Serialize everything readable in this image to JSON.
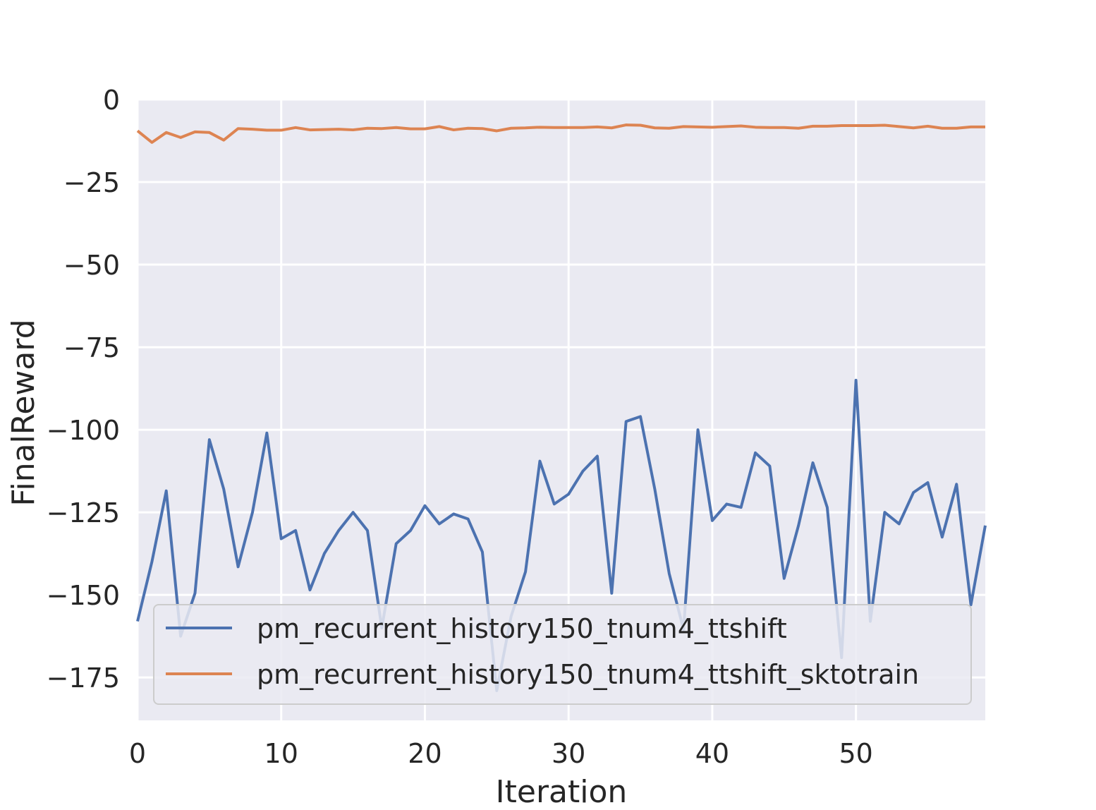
{
  "chart_data": {
    "type": "line",
    "xlabel": "Iteration",
    "ylabel": "FinalReward",
    "xlim": [
      0,
      59
    ],
    "ylim": [
      -188,
      0
    ],
    "xticks": [
      0,
      10,
      20,
      30,
      40,
      50
    ],
    "yticks": [
      0,
      -25,
      -50,
      -75,
      -100,
      -125,
      -150,
      -175
    ],
    "xtick_labels": [
      "0",
      "10",
      "20",
      "30",
      "40",
      "50"
    ],
    "ytick_labels": [
      "0",
      "−25",
      "−50",
      "−75",
      "−100",
      "−125",
      "−150",
      "−175"
    ],
    "grid": true,
    "legend_position": "bottom",
    "x": [
      0,
      1,
      2,
      3,
      4,
      5,
      6,
      7,
      8,
      9,
      10,
      11,
      12,
      13,
      14,
      15,
      16,
      17,
      18,
      19,
      20,
      21,
      22,
      23,
      24,
      25,
      26,
      27,
      28,
      29,
      30,
      31,
      32,
      33,
      34,
      35,
      36,
      37,
      38,
      39,
      40,
      41,
      42,
      43,
      44,
      45,
      46,
      47,
      48,
      49,
      50,
      51,
      52,
      53,
      54,
      55,
      56,
      57,
      58,
      59
    ],
    "series": [
      {
        "name": "pm_recurrent_history150_tnum4_ttshift",
        "color": "#4c72b0",
        "values": [
          -158,
          -140,
          -118.5,
          -162.5,
          -149.5,
          -103,
          -118,
          -141.5,
          -125,
          -101,
          -133,
          -130.5,
          -148.5,
          -137.5,
          -130.5,
          -125,
          -130.5,
          -160,
          -134.5,
          -130.5,
          -123,
          -128.5,
          -125.5,
          -127,
          -137,
          -179,
          -156.5,
          -143,
          -109.5,
          -122.5,
          -119.5,
          -112.5,
          -108,
          -149.5,
          -97.5,
          -96,
          -118,
          -143.5,
          -160.5,
          -100,
          -127.5,
          -122.5,
          -123.5,
          -107,
          -111,
          -145,
          -129,
          -110,
          -123.5,
          -169,
          -85,
          -158,
          -125,
          -128.5,
          -119,
          -116,
          -132.5,
          -116.5,
          -153,
          -129
        ]
      },
      {
        "name": "pm_recurrent_history150_tnum4_ttshift_sktotrain",
        "color": "#dd8452",
        "values": [
          -9.5,
          -13,
          -10,
          -11.5,
          -9.8,
          -10,
          -12.3,
          -8.8,
          -9,
          -9.3,
          -9.3,
          -8.5,
          -9.2,
          -9.1,
          -9,
          -9.2,
          -8.7,
          -8.8,
          -8.5,
          -8.9,
          -8.9,
          -8.2,
          -9.2,
          -8.7,
          -8.8,
          -9.5,
          -8.7,
          -8.6,
          -8.4,
          -8.5,
          -8.5,
          -8.5,
          -8.3,
          -8.6,
          -7.7,
          -7.8,
          -8.6,
          -8.7,
          -8.2,
          -8.3,
          -8.4,
          -8.2,
          -8,
          -8.4,
          -8.5,
          -8.5,
          -8.7,
          -8.1,
          -8.1,
          -7.9,
          -7.9,
          -7.9,
          -7.8,
          -8.2,
          -8.6,
          -8.1,
          -8.7,
          -8.7,
          -8.3,
          -8.3
        ]
      }
    ]
  }
}
